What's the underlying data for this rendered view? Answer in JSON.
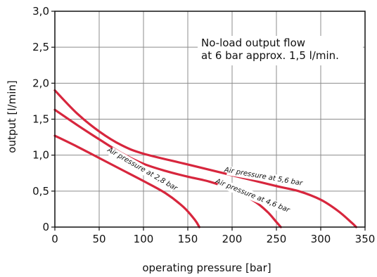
{
  "chart_data": {
    "type": "line",
    "xlabel": "operating pressure [bar]",
    "ylabel": "output [l/min]",
    "xlim": [
      0,
      350
    ],
    "ylim": [
      0,
      3.0
    ],
    "x_ticks": [
      "0",
      "50",
      "100",
      "150",
      "200",
      "250",
      "300",
      "350"
    ],
    "y_ticks": [
      "0",
      "0,5",
      "1,0",
      "1,5",
      "2,0",
      "2,5",
      "3,0"
    ],
    "grid": true,
    "annotation": {
      "line1": "No-load output flow",
      "line2": "at 6 bar approx. 1,5 l/min."
    },
    "line_color": "#d7263d",
    "series": [
      {
        "name": "Air pressure at 2,8 bar",
        "points": [
          [
            0,
            1.27
          ],
          [
            25,
            1.12
          ],
          [
            50,
            0.96
          ],
          [
            75,
            0.8
          ],
          [
            100,
            0.64
          ],
          [
            125,
            0.47
          ],
          [
            145,
            0.28
          ],
          [
            158,
            0.1
          ],
          [
            163,
            0.0
          ]
        ]
      },
      {
        "name": "Air pressure at 4,6 bar",
        "points": [
          [
            0,
            1.63
          ],
          [
            25,
            1.42
          ],
          [
            50,
            1.22
          ],
          [
            75,
            1.03
          ],
          [
            100,
            0.88
          ],
          [
            125,
            0.78
          ],
          [
            150,
            0.7
          ],
          [
            175,
            0.63
          ],
          [
            200,
            0.52
          ],
          [
            225,
            0.36
          ],
          [
            240,
            0.21
          ],
          [
            250,
            0.07
          ],
          [
            255,
            0.0
          ]
        ]
      },
      {
        "name": "Air pressure at 5,6 bar",
        "points": [
          [
            0,
            1.9
          ],
          [
            25,
            1.58
          ],
          [
            50,
            1.33
          ],
          [
            75,
            1.14
          ],
          [
            100,
            1.02
          ],
          [
            150,
            0.87
          ],
          [
            200,
            0.72
          ],
          [
            250,
            0.57
          ],
          [
            275,
            0.5
          ],
          [
            300,
            0.38
          ],
          [
            320,
            0.22
          ],
          [
            335,
            0.06
          ],
          [
            340,
            0.0
          ]
        ]
      }
    ]
  }
}
